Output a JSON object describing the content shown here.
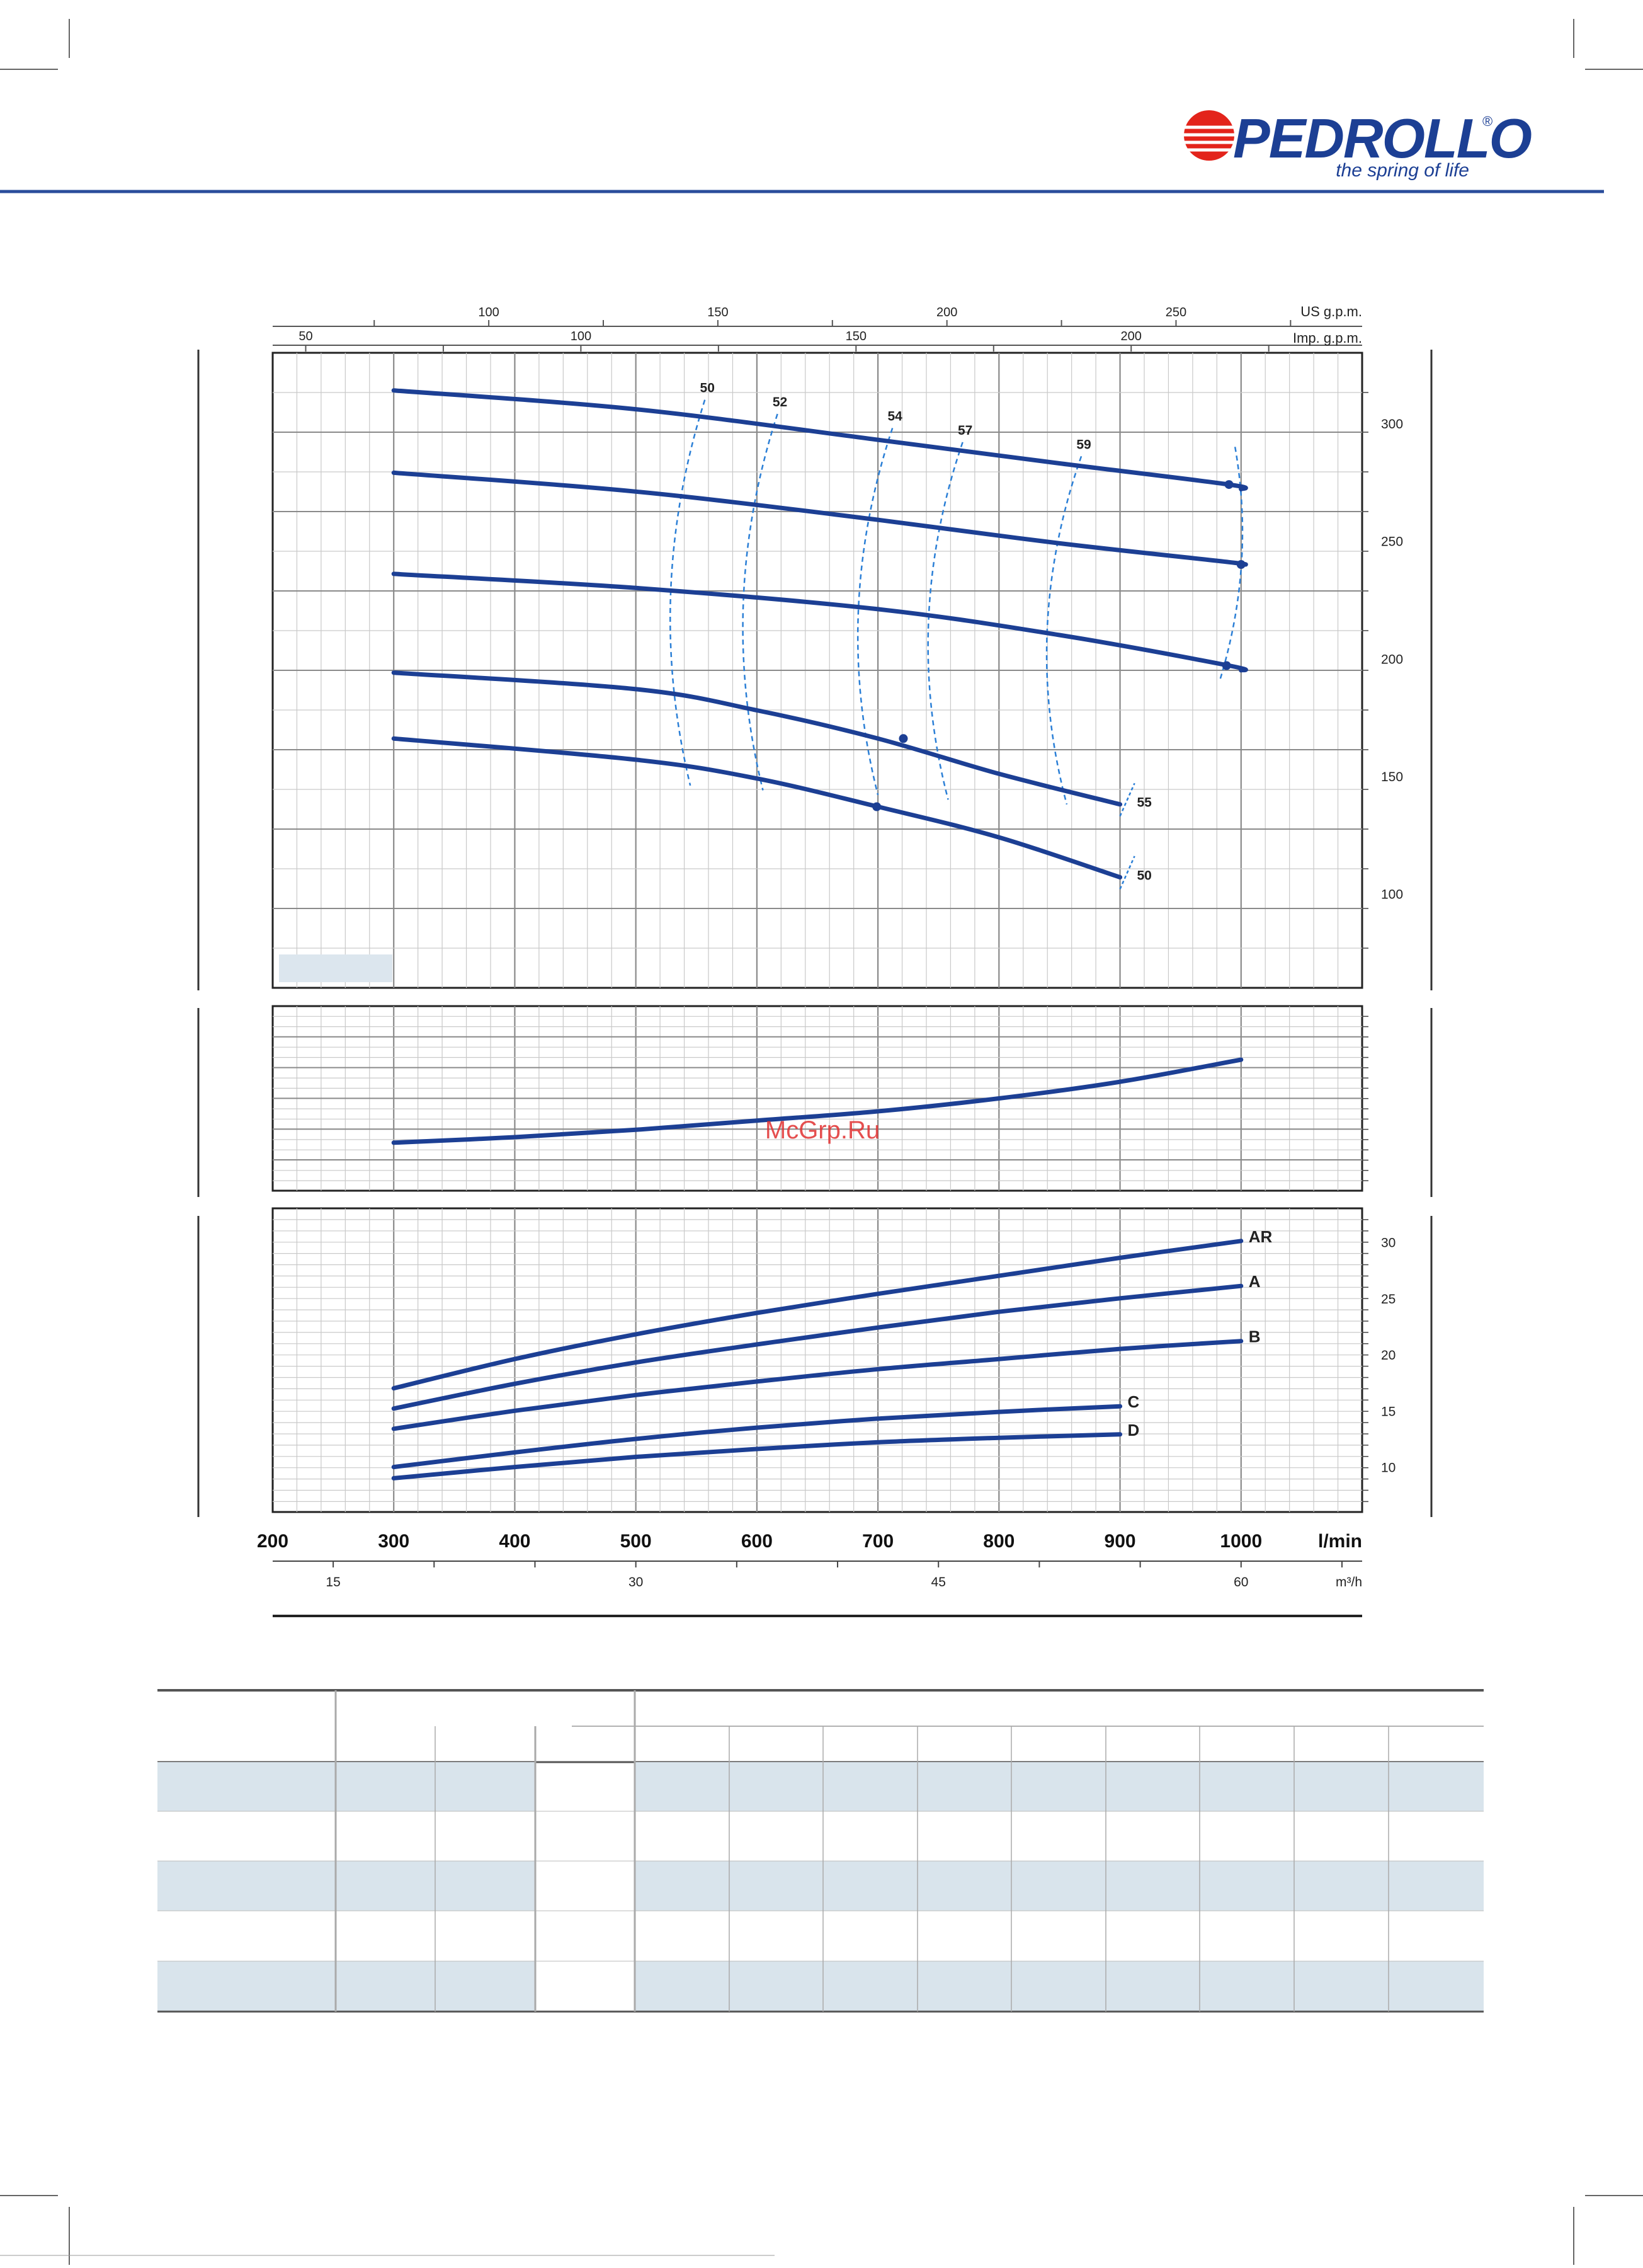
{
  "brand": {
    "name": "PEDROLLO",
    "registered": "®",
    "tagline": "the spring of life",
    "colors": {
      "blue": "#1c3f94",
      "red": "#e3241b",
      "rule": "#2a4d9b"
    }
  },
  "watermark": "McGrp.Ru",
  "colors": {
    "curve": "#1c3f94",
    "iso": "#2b7fd6",
    "grid": "#c9c9c9",
    "panel_label_bg": "#dce6ee",
    "table_band": "#d9e4ec"
  },
  "chart_data": [
    {
      "type": "line",
      "panel": "head",
      "xlim": [
        200,
        1100
      ],
      "ylim": [
        60,
        330
      ],
      "y_ticks": [
        100,
        150,
        200,
        250,
        300
      ],
      "series": [
        {
          "x": [
            300,
            500,
            700,
            850,
            990,
            1000
          ],
          "y": [
            314,
            306,
            293,
            283,
            274,
            272
          ]
        },
        {
          "x": [
            300,
            500,
            700,
            850,
            990,
            1000
          ],
          "y": [
            279,
            271,
            259,
            249,
            241,
            240
          ]
        },
        {
          "x": [
            300,
            500,
            700,
            850,
            990,
            1000
          ],
          "y": [
            236,
            230,
            221,
            210,
            197,
            195
          ]
        },
        {
          "x": [
            300,
            500,
            600,
            700,
            800,
            900
          ],
          "y": [
            194,
            187,
            178,
            166,
            151,
            138
          ]
        },
        {
          "x": [
            300,
            500,
            600,
            700,
            800,
            900
          ],
          "y": [
            166,
            157,
            149,
            137,
            124,
            107
          ]
        }
      ],
      "markers": [
        {
          "x": 990,
          "y": 274
        },
        {
          "x": 1000,
          "y": 240
        },
        {
          "x": 988,
          "y": 197
        },
        {
          "x": 721,
          "y": 166
        },
        {
          "x": 699,
          "y": 137
        }
      ],
      "efficiency_labels": [
        "50",
        "52",
        "54",
        "57",
        "59"
      ],
      "efficiency_x": [
        557,
        617,
        712,
        770,
        868
      ],
      "end_labels": [
        "55",
        "50"
      ]
    },
    {
      "type": "line",
      "panel": "power",
      "xlim": [
        200,
        1100
      ],
      "ylim": [
        0,
        10
      ],
      "series": [
        {
          "x": [
            300,
            400,
            500,
            600,
            700,
            800,
            900,
            1000
          ],
          "y": [
            2.6,
            2.9,
            3.3,
            3.8,
            4.3,
            5.0,
            5.9,
            7.1
          ]
        }
      ]
    },
    {
      "type": "line",
      "panel": "npsh",
      "xlim": [
        200,
        1100
      ],
      "ylim": [
        6,
        33
      ],
      "y_ticks": [
        10,
        15,
        20,
        25,
        30
      ],
      "series": [
        {
          "name": "AR",
          "x": [
            300,
            400,
            500,
            600,
            700,
            800,
            900,
            1000
          ],
          "y": [
            17.0,
            19.6,
            21.8,
            23.7,
            25.4,
            27.0,
            28.6,
            30.1
          ]
        },
        {
          "name": "A",
          "x": [
            300,
            400,
            500,
            600,
            700,
            800,
            900,
            1000
          ],
          "y": [
            15.2,
            17.4,
            19.3,
            20.9,
            22.4,
            23.8,
            25.0,
            26.1
          ]
        },
        {
          "name": "B",
          "x": [
            300,
            400,
            500,
            600,
            700,
            800,
            900,
            1000
          ],
          "y": [
            13.4,
            15.0,
            16.4,
            17.6,
            18.7,
            19.6,
            20.5,
            21.2
          ]
        },
        {
          "name": "C",
          "x": [
            300,
            400,
            500,
            600,
            700,
            800,
            900
          ],
          "y": [
            10.0,
            11.3,
            12.5,
            13.5,
            14.3,
            14.9,
            15.4
          ]
        },
        {
          "name": "D",
          "x": [
            300,
            400,
            500,
            600,
            700,
            800,
            900
          ],
          "y": [
            9.0,
            10.0,
            10.9,
            11.6,
            12.2,
            12.6,
            12.9
          ]
        }
      ]
    }
  ],
  "axes": {
    "lmin_ticks": [
      "200",
      "300",
      "400",
      "500",
      "600",
      "700",
      "800",
      "900",
      "1000"
    ],
    "lmin_unit": "l/min",
    "m3h_ticks": [
      "15",
      "30",
      "45",
      "60"
    ],
    "m3h_unit": "m³/h",
    "usgpm_ticks": [
      "100",
      "150",
      "200",
      "250"
    ],
    "usgpm_unit": "US g.p.m.",
    "impgpm_ticks": [
      "50",
      "100",
      "150",
      "200"
    ],
    "impgpm_unit": "Imp. g.p.m."
  }
}
